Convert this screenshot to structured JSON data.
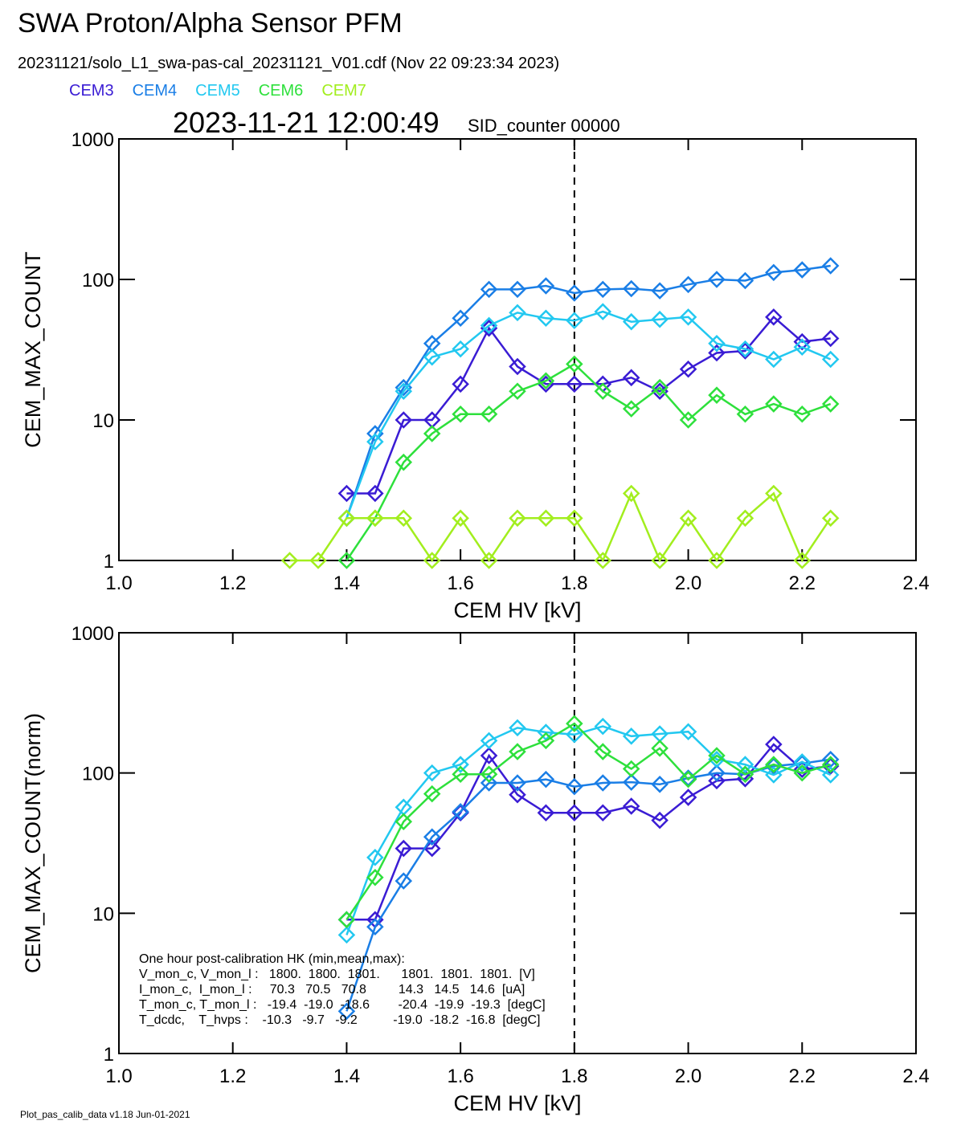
{
  "header": {
    "title": "SWA Proton/Alpha Sensor PFM",
    "subtitle": "20231121/solo_L1_swa-pas-cal_20231121_V01.cdf  (Nov 22 09:23:34 2023)",
    "timestamp": "2023-11-21 12:00:49",
    "counter": "SID_counter 00000"
  },
  "footer": "Plot_pas_calib_data v1.18 Jun-01-2021",
  "chart_data": [
    {
      "type": "line",
      "xlabel": "CEM HV [kV]",
      "ylabel": "CEM_MAX_COUNT",
      "ylog": true,
      "xlim": [
        1.0,
        2.4
      ],
      "ylim": [
        1,
        1000
      ],
      "xticks": [
        {
          "value": 1.0,
          "label": "1.0"
        },
        {
          "value": 1.2,
          "label": "1.2"
        },
        {
          "value": 1.4,
          "label": "1.4"
        },
        {
          "value": 1.6,
          "label": "1.6"
        },
        {
          "value": 1.8,
          "label": "1.8"
        },
        {
          "value": 2.0,
          "label": "2.0"
        },
        {
          "value": 2.2,
          "label": "2.2"
        },
        {
          "value": 2.4,
          "label": "2.4"
        }
      ],
      "yticks": [
        1,
        10,
        100,
        1000
      ],
      "vline": 1.8,
      "x": [
        1.3,
        1.35,
        1.4,
        1.45,
        1.5,
        1.55,
        1.6,
        1.65,
        1.7,
        1.75,
        1.8,
        1.85,
        1.9,
        1.95,
        2.0,
        2.05,
        2.1,
        2.15,
        2.2,
        2.25
      ],
      "series": [
        {
          "name": "CEM3",
          "color": "#3a1cd4",
          "values": [
            null,
            null,
            3,
            3,
            10,
            10,
            18,
            45,
            24,
            18,
            18,
            18,
            20,
            16,
            23,
            30,
            31,
            54,
            36,
            38
          ]
        },
        {
          "name": "CEM4",
          "color": "#1a7ee6",
          "values": [
            null,
            null,
            2,
            8,
            17,
            35,
            53,
            85,
            85,
            90,
            80,
            85,
            86,
            83,
            92,
            100,
            98,
            112,
            117,
            125
          ]
        },
        {
          "name": "CEM5",
          "color": "#22c8f0",
          "values": [
            null,
            null,
            2,
            7,
            16,
            28,
            32,
            47,
            58,
            53,
            51,
            59,
            50,
            52,
            54,
            35,
            32,
            27,
            33,
            27
          ]
        },
        {
          "name": "CEM6",
          "color": "#2ee03c",
          "values": [
            null,
            null,
            1,
            2,
            5,
            8,
            11,
            11,
            16,
            19,
            25,
            16,
            12,
            17,
            10,
            15,
            11,
            13,
            11,
            13
          ]
        },
        {
          "name": "CEM7",
          "color": "#a2ee1e",
          "values": [
            1,
            1,
            2,
            2,
            2,
            1,
            2,
            1,
            2,
            2,
            2,
            1,
            3,
            1,
            2,
            1,
            2,
            3,
            1,
            2
          ]
        }
      ]
    },
    {
      "type": "line",
      "xlabel": "CEM HV [kV]",
      "ylabel": "CEM_MAX_COUNT(norm)",
      "ylog": true,
      "xlim": [
        1.0,
        2.4
      ],
      "ylim": [
        1,
        1000
      ],
      "xticks": [
        {
          "value": 1.0,
          "label": "1.0"
        },
        {
          "value": 1.2,
          "label": "1.2"
        },
        {
          "value": 1.4,
          "label": "1.4"
        },
        {
          "value": 1.6,
          "label": "1.6"
        },
        {
          "value": 1.8,
          "label": "1.8"
        },
        {
          "value": 2.0,
          "label": "2.0"
        },
        {
          "value": 2.2,
          "label": "2.2"
        },
        {
          "value": 2.4,
          "label": "2.4"
        }
      ],
      "yticks": [
        1,
        10,
        100,
        1000
      ],
      "vline": 1.8,
      "x": [
        1.3,
        1.35,
        1.4,
        1.45,
        1.5,
        1.55,
        1.6,
        1.65,
        1.7,
        1.75,
        1.8,
        1.85,
        1.9,
        1.95,
        2.0,
        2.05,
        2.1,
        2.15,
        2.2,
        2.25
      ],
      "series": [
        {
          "color": "#3a1cd4",
          "values": [
            null,
            null,
            9,
            9,
            29,
            29,
            52,
            133,
            70,
            52,
            52,
            52,
            58,
            46,
            67,
            88,
            91,
            160,
            106,
            112
          ]
        },
        {
          "color": "#1a7ee6",
          "values": [
            null,
            null,
            2,
            8,
            17,
            35,
            53,
            85,
            85,
            90,
            80,
            85,
            86,
            83,
            92,
            100,
            98,
            112,
            117,
            125
          ]
        },
        {
          "color": "#22c8f0",
          "values": [
            null,
            null,
            7,
            25,
            57,
            100,
            115,
            170,
            210,
            195,
            188,
            215,
            183,
            190,
            197,
            125,
            115,
            97,
            120,
            97
          ]
        },
        {
          "color": "#2ee03c",
          "values": [
            null,
            null,
            9,
            18,
            45,
            71,
            98,
            98,
            142,
            170,
            225,
            142,
            107,
            150,
            90,
            133,
            98,
            115,
            100,
            115
          ]
        }
      ],
      "annotations": [
        "One hour post-calibration HK (min,mean,max):",
        "V_mon_c, V_mon_l :   1800.  1800.  1801.      1801.  1801.  1801.  [V]",
        "I_mon_c,  I_mon_l :     70.3   70.5   70.8         14.3   14.5   14.6  [uA]",
        "T_mon_c, T_mon_l :   -19.4  -19.0  -18.6        -20.4  -19.9  -19.3  [degC]",
        "T_dcdc,    T_hvps :    -10.3   -9.7   -9.2          -19.0  -18.2  -16.8  [degC]"
      ]
    }
  ]
}
